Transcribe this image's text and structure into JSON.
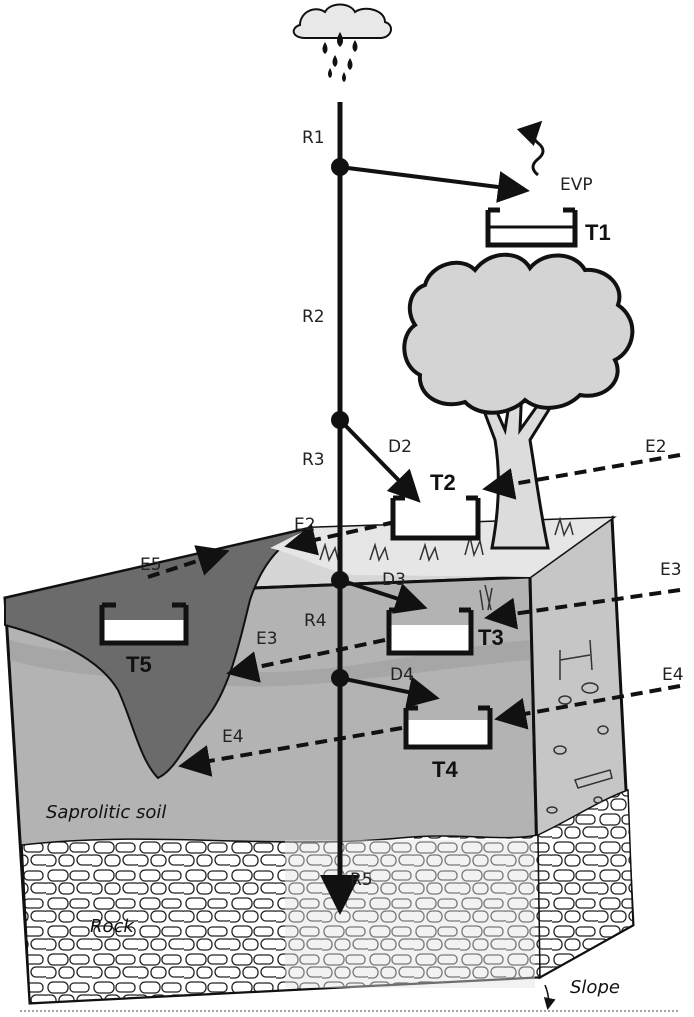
{
  "labels": {
    "r1": "R1",
    "r2": "R2",
    "r3": "R3",
    "r4": "R4",
    "r5": "R5",
    "d2": "D2",
    "d3": "D3",
    "d4": "D4",
    "evp": "EVP",
    "t1": "T1",
    "t2": "T2",
    "t3": "T3",
    "t4": "T4",
    "t5": "T5",
    "e2_right": "E2",
    "e2_left": "E2",
    "e3_right": "E3",
    "e3_left": "E3",
    "e4_right": "E4",
    "e4_left": "E4",
    "e5": "E5",
    "saprolitic_soil": "Saprolitic soil",
    "rock": "Rock",
    "slope": "Slope"
  },
  "colors": {
    "soil_front": "#b5b5b5",
    "soil_top": "#d9d9d9",
    "dark_area": "#6e6e6e",
    "line": "#111111",
    "rock_fill": "#ffffff"
  }
}
